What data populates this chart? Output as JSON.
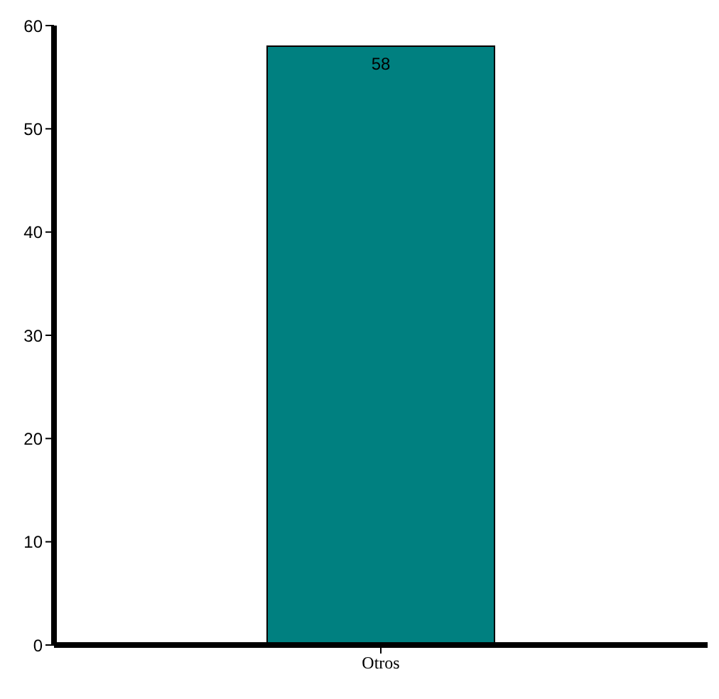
{
  "chart_data": {
    "type": "bar",
    "categories": [
      "Otros"
    ],
    "values": [
      58
    ],
    "color": "#008080",
    "ylim": [
      0,
      60
    ],
    "yticks": [
      0,
      10,
      20,
      30,
      40,
      50,
      60
    ],
    "data_labels": true
  }
}
